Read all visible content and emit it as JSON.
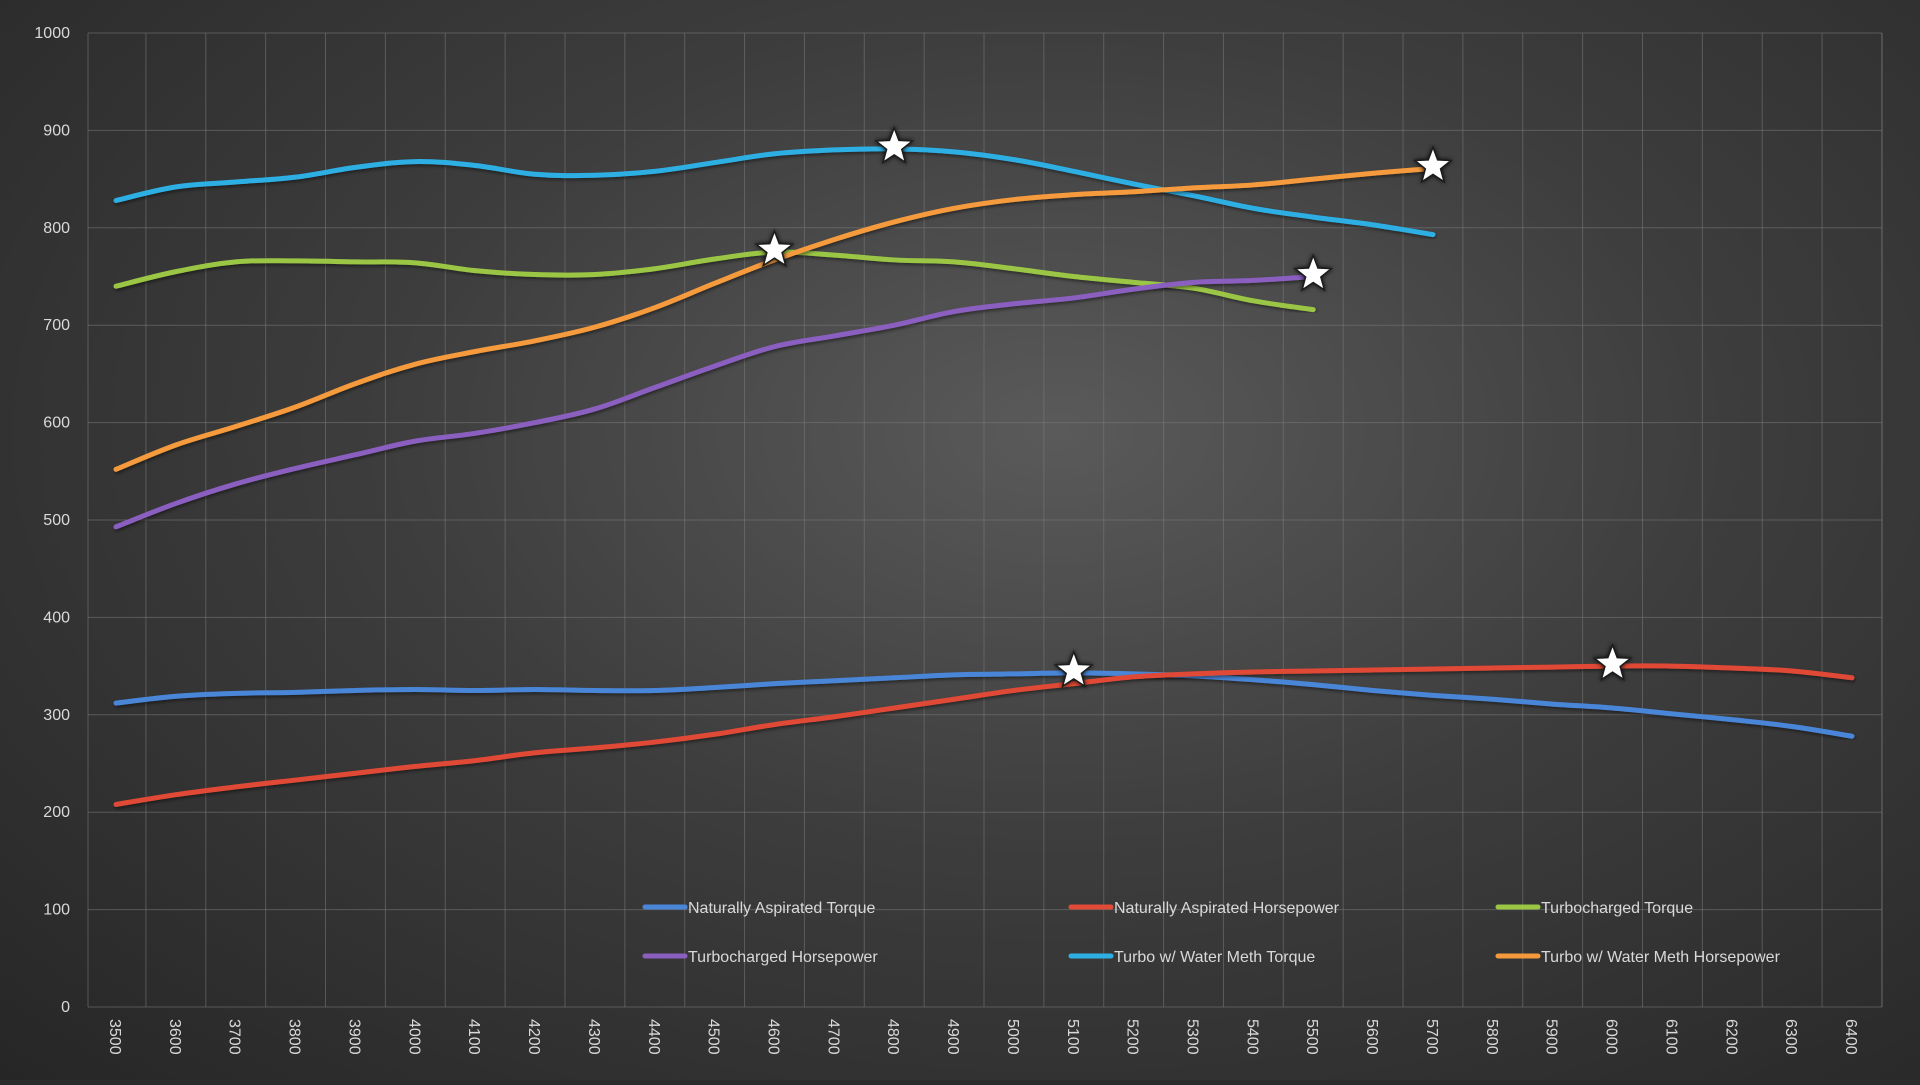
{
  "chart_data": {
    "type": "line",
    "title": "",
    "xlabel": "",
    "ylabel": "",
    "xlim": [
      3500,
      6400
    ],
    "ylim": [
      0,
      1000
    ],
    "x_ticks": [
      3500,
      3600,
      3700,
      3800,
      3900,
      4000,
      4100,
      4200,
      4300,
      4400,
      4500,
      4600,
      4700,
      4800,
      4900,
      5000,
      5100,
      5200,
      5300,
      5400,
      5500,
      5600,
      5700,
      5800,
      5900,
      6000,
      6100,
      6200,
      6300,
      6400
    ],
    "y_ticks": [
      0,
      100,
      200,
      300,
      400,
      500,
      600,
      700,
      800,
      900,
      1000
    ],
    "grid": true,
    "legend_position": "bottom",
    "series": [
      {
        "name": "Naturally Aspirated Torque",
        "color": "#4a86d8",
        "x": [
          3500,
          3600,
          3700,
          3800,
          3900,
          4000,
          4100,
          4200,
          4300,
          4400,
          4500,
          4600,
          4700,
          4800,
          4900,
          5000,
          5100,
          5200,
          5300,
          5400,
          5500,
          5600,
          5700,
          5800,
          5900,
          6000,
          6100,
          6200,
          6300,
          6400
        ],
        "y": [
          312,
          319,
          322,
          323,
          325,
          326,
          325,
          326,
          325,
          325,
          328,
          332,
          335,
          338,
          341,
          342,
          343,
          342,
          340,
          336,
          331,
          325,
          320,
          316,
          311,
          307,
          301,
          295,
          288,
          278
        ],
        "peak": {
          "x": 5100,
          "y": 343
        }
      },
      {
        "name": "Naturally Aspirated Horsepower",
        "color": "#e04a36",
        "x": [
          3500,
          3600,
          3700,
          3800,
          3900,
          4000,
          4100,
          4200,
          4300,
          4400,
          4500,
          4600,
          4700,
          4800,
          4900,
          5000,
          5100,
          5200,
          5300,
          5400,
          5500,
          5600,
          5700,
          5800,
          5900,
          6000,
          6100,
          6200,
          6300,
          6400
        ],
        "y": [
          208,
          218,
          226,
          233,
          240,
          247,
          253,
          261,
          266,
          272,
          280,
          290,
          298,
          307,
          316,
          325,
          332,
          339,
          342,
          344,
          345,
          346,
          347,
          348,
          349,
          350,
          350,
          348,
          345,
          338
        ],
        "peak": {
          "x": 6000,
          "y": 350
        }
      },
      {
        "name": "Turbocharged Torque",
        "color": "#9bc644",
        "x": [
          3500,
          3600,
          3700,
          3800,
          3900,
          4000,
          4100,
          4200,
          4300,
          4400,
          4500,
          4600,
          4700,
          4800,
          4900,
          5000,
          5100,
          5200,
          5300,
          5400,
          5500
        ],
        "y": [
          740,
          755,
          765,
          766,
          765,
          764,
          756,
          752,
          752,
          758,
          768,
          775,
          772,
          767,
          765,
          758,
          750,
          744,
          738,
          725,
          716
        ],
        "peak": {
          "x": 4600,
          "y": 775
        }
      },
      {
        "name": "Turbocharged Horsepower",
        "color": "#8a5fbf",
        "x": [
          3500,
          3600,
          3700,
          3800,
          3900,
          4000,
          4100,
          4200,
          4300,
          4400,
          4500,
          4600,
          4700,
          4800,
          4900,
          5000,
          5100,
          5200,
          5300,
          5400,
          5500
        ],
        "y": [
          493,
          517,
          537,
          553,
          567,
          581,
          589,
          600,
          614,
          636,
          658,
          678,
          689,
          700,
          714,
          722,
          728,
          737,
          744,
          746,
          750
        ],
        "peak": {
          "x": 5500,
          "y": 750
        }
      },
      {
        "name": "Turbo w/ Water Meth Torque",
        "color": "#2eafe4",
        "x": [
          3500,
          3600,
          3700,
          3800,
          3900,
          4000,
          4100,
          4200,
          4300,
          4400,
          4500,
          4600,
          4700,
          4800,
          4900,
          5000,
          5100,
          5200,
          5300,
          5400,
          5500,
          5600,
          5700
        ],
        "y": [
          828,
          842,
          847,
          852,
          862,
          868,
          864,
          855,
          854,
          858,
          867,
          876,
          880,
          881,
          878,
          870,
          858,
          845,
          833,
          820,
          811,
          803,
          793
        ],
        "peak": {
          "x": 4800,
          "y": 881
        }
      },
      {
        "name": "Turbo w/ Water Meth Horsepower",
        "color": "#f59a3c",
        "x": [
          3500,
          3600,
          3700,
          3800,
          3900,
          4000,
          4100,
          4200,
          4300,
          4400,
          4500,
          4600,
          4700,
          4800,
          4900,
          5000,
          5100,
          5200,
          5300,
          5400,
          5500,
          5600,
          5700
        ],
        "y": [
          552,
          577,
          596,
          616,
          640,
          660,
          673,
          684,
          698,
          718,
          743,
          767,
          788,
          806,
          820,
          829,
          834,
          837,
          841,
          844,
          850,
          856,
          861
        ],
        "peak": {
          "x": 5700,
          "y": 861
        }
      }
    ]
  }
}
